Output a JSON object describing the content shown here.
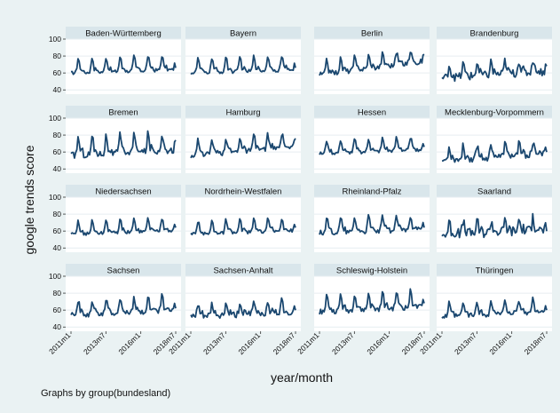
{
  "chart_data": {
    "type": "line",
    "ylabel": "google trends score",
    "xlabel": "year/month",
    "note": "Graphs by group(bundesland)",
    "ylim": [
      35,
      100
    ],
    "yticks": [
      40,
      60,
      80,
      100
    ],
    "x_start": "2011m1",
    "x_end": "2018m7",
    "xticks": [
      "2011m1",
      "2013m7",
      "2016m1",
      "2018m7"
    ],
    "grid": true,
    "panels": [
      {
        "name": "Baden-Württemberg",
        "base": 60,
        "amp": 18,
        "trend": 4,
        "noise": 2,
        "end": 66
      },
      {
        "name": "Bayern",
        "base": 60,
        "amp": 18,
        "trend": 4,
        "noise": 2,
        "end": 66
      },
      {
        "name": "Berlin",
        "base": 58,
        "amp": 16,
        "trend": 16,
        "noise": 3,
        "end": 82
      },
      {
        "name": "Brandenburg",
        "base": 54,
        "amp": 16,
        "trend": 8,
        "noise": 5,
        "end": 68
      },
      {
        "name": "Bremen",
        "base": 56,
        "amp": 22,
        "trend": 6,
        "noise": 4,
        "end": 74
      },
      {
        "name": "Hamburg",
        "base": 56,
        "amp": 18,
        "trend": 10,
        "noise": 3,
        "end": 76
      },
      {
        "name": "Hessen",
        "base": 58,
        "amp": 16,
        "trend": 5,
        "noise": 2,
        "end": 66
      },
      {
        "name": "Mecklenburg-Vorpommern",
        "base": 50,
        "amp": 16,
        "trend": 8,
        "noise": 4,
        "end": 60
      },
      {
        "name": "Niedersachsen",
        "base": 56,
        "amp": 16,
        "trend": 5,
        "noise": 2,
        "end": 64
      },
      {
        "name": "Nordrhein-Westfalen",
        "base": 56,
        "amp": 16,
        "trend": 5,
        "noise": 2,
        "end": 64
      },
      {
        "name": "Rheinland-Pfalz",
        "base": 58,
        "amp": 18,
        "trend": 4,
        "noise": 3,
        "end": 64
      },
      {
        "name": "Saarland",
        "base": 56,
        "amp": 14,
        "trend": 6,
        "noise": 6,
        "end": 60
      },
      {
        "name": "Sachsen",
        "base": 54,
        "amp": 18,
        "trend": 6,
        "noise": 3,
        "end": 62
      },
      {
        "name": "Sachsen-Anhalt",
        "base": 52,
        "amp": 14,
        "trend": 6,
        "noise": 4,
        "end": 60
      },
      {
        "name": "Schleswig-Holstein",
        "base": 58,
        "amp": 20,
        "trend": 6,
        "noise": 3,
        "end": 68
      },
      {
        "name": "Thüringen",
        "base": 52,
        "amp": 16,
        "trend": 6,
        "noise": 3,
        "end": 60
      }
    ]
  }
}
